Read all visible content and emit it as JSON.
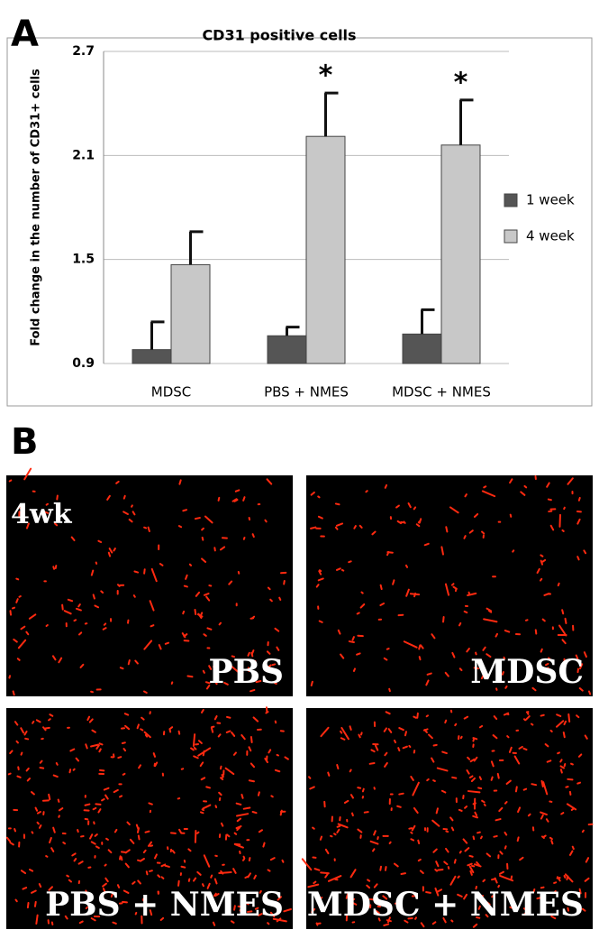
{
  "panel_a_label": "A",
  "panel_b_label": "B",
  "chart_data": {
    "type": "bar",
    "title": "CD31 positive cells",
    "ylabel": "Fold change in the number of CD31+ cells",
    "categories": [
      "MDSC",
      "PBS + NMES",
      "MDSC + NMES"
    ],
    "series": [
      {
        "name": "1 week",
        "color": "#555555",
        "values": [
          0.98,
          1.06,
          1.07
        ],
        "errors": [
          0.16,
          0.05,
          0.14
        ],
        "annotations": [
          null,
          null,
          null
        ]
      },
      {
        "name": "4 week",
        "color": "#c8c8c8",
        "values": [
          1.47,
          2.21,
          2.16
        ],
        "errors": [
          0.19,
          0.25,
          0.26
        ],
        "annotations": [
          null,
          "*",
          "*"
        ]
      }
    ],
    "ylim": [
      0.9,
      2.7
    ],
    "yticks": [
      0.9,
      1.5,
      2.1,
      2.7
    ],
    "grid": true,
    "legend": "right"
  },
  "timepoint": "4wk",
  "images": [
    {
      "label": "PBS"
    },
    {
      "label": "MDSC"
    },
    {
      "label": "PBS + NMES"
    },
    {
      "label": "MDSC + NMES"
    }
  ]
}
